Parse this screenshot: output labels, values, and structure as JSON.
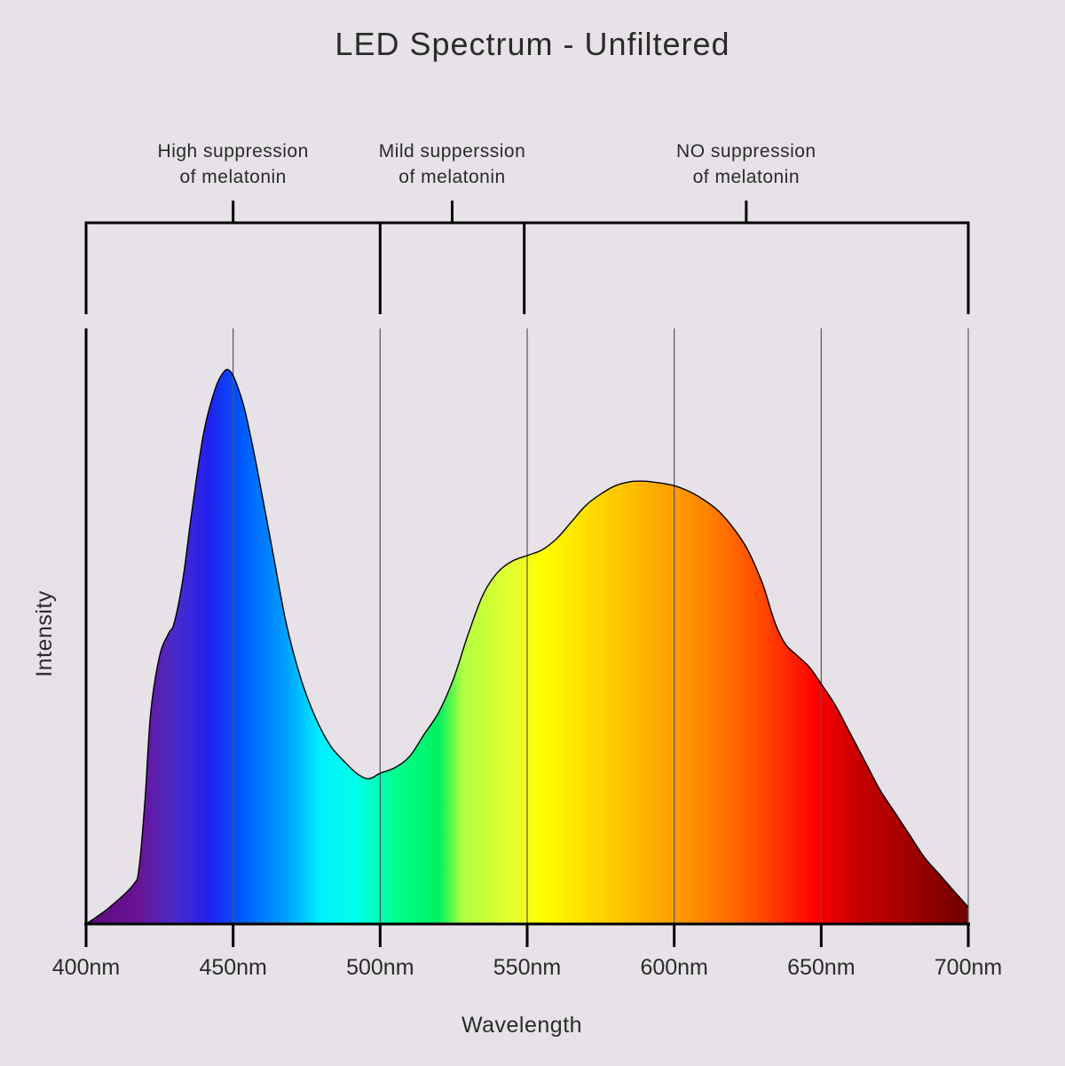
{
  "chart_data": {
    "type": "area",
    "title": "LED Spectrum - Unfiltered",
    "xlabel": "Wavelength",
    "ylabel": "Intensity",
    "x_unit": "nm",
    "xlim": [
      400,
      700
    ],
    "ylim": [
      0,
      1
    ],
    "x_ticks": [
      400,
      450,
      500,
      550,
      600,
      650,
      700
    ],
    "x_tick_labels": [
      "400nm",
      "450nm",
      "500nm",
      "550nm",
      "600nm",
      "650nm",
      "700nm"
    ],
    "grid": {
      "vertical": true,
      "horizontal": false
    },
    "series": [
      {
        "x": [
          400,
          408,
          416,
          418,
          420,
          422,
          425,
          428,
          430,
          433,
          436,
          440,
          444,
          447,
          449,
          451,
          454,
          458,
          463,
          468,
          473,
          478,
          483,
          488,
          492,
          496,
          500,
          505,
          510,
          515,
          520,
          525,
          530,
          535,
          540,
          545,
          550,
          555,
          560,
          565,
          570,
          575,
          580,
          585,
          590,
          595,
          600,
          605,
          610,
          615,
          620,
          625,
          630,
          633,
          635,
          638,
          642,
          646,
          650,
          655,
          660,
          665,
          670,
          675,
          680,
          685,
          690,
          695,
          700
        ],
        "y": [
          0.0,
          0.03,
          0.07,
          0.1,
          0.22,
          0.38,
          0.48,
          0.52,
          0.54,
          0.62,
          0.74,
          0.88,
          0.96,
          0.99,
          0.99,
          0.97,
          0.92,
          0.82,
          0.68,
          0.54,
          0.44,
          0.37,
          0.32,
          0.29,
          0.27,
          0.26,
          0.27,
          0.28,
          0.3,
          0.34,
          0.38,
          0.44,
          0.52,
          0.59,
          0.63,
          0.65,
          0.66,
          0.67,
          0.69,
          0.72,
          0.75,
          0.77,
          0.785,
          0.792,
          0.793,
          0.79,
          0.785,
          0.775,
          0.76,
          0.74,
          0.71,
          0.67,
          0.61,
          0.56,
          0.53,
          0.5,
          0.48,
          0.46,
          0.43,
          0.39,
          0.34,
          0.29,
          0.24,
          0.2,
          0.16,
          0.12,
          0.09,
          0.06,
          0.03
        ]
      }
    ],
    "spectrum_colors": [
      {
        "nm": 400,
        "color": "#5a0a7a"
      },
      {
        "nm": 418,
        "color": "#6a1496"
      },
      {
        "nm": 430,
        "color": "#4b2ac8"
      },
      {
        "nm": 442,
        "color": "#2020f0"
      },
      {
        "nm": 452,
        "color": "#0055ff"
      },
      {
        "nm": 468,
        "color": "#00a0ff"
      },
      {
        "nm": 480,
        "color": "#00f0ff"
      },
      {
        "nm": 492,
        "color": "#00ffe8"
      },
      {
        "nm": 505,
        "color": "#00ff90"
      },
      {
        "nm": 520,
        "color": "#00f060"
      },
      {
        "nm": 528,
        "color": "#b0ff40"
      },
      {
        "nm": 545,
        "color": "#e6ff30"
      },
      {
        "nm": 555,
        "color": "#ffff00"
      },
      {
        "nm": 575,
        "color": "#ffd400"
      },
      {
        "nm": 595,
        "color": "#ffa800"
      },
      {
        "nm": 612,
        "color": "#ff8000"
      },
      {
        "nm": 630,
        "color": "#ff4800"
      },
      {
        "nm": 648,
        "color": "#ff0000"
      },
      {
        "nm": 662,
        "color": "#c80000"
      },
      {
        "nm": 680,
        "color": "#a00000"
      },
      {
        "nm": 700,
        "color": "#700000"
      }
    ],
    "annotations": [
      {
        "label_line1": "High suppression",
        "label_line2": "of melatonin",
        "from": 400,
        "to": 500
      },
      {
        "label_line1": "Mild supperssion",
        "label_line2": "of melatonin",
        "from": 500,
        "to": 549
      },
      {
        "label_line1": "NO suppression",
        "label_line2": "of melatonin",
        "from": 549,
        "to": 700
      }
    ]
  },
  "colors": {
    "background": "#e6e2e7",
    "axis": "#000000",
    "grid": "#555555"
  }
}
